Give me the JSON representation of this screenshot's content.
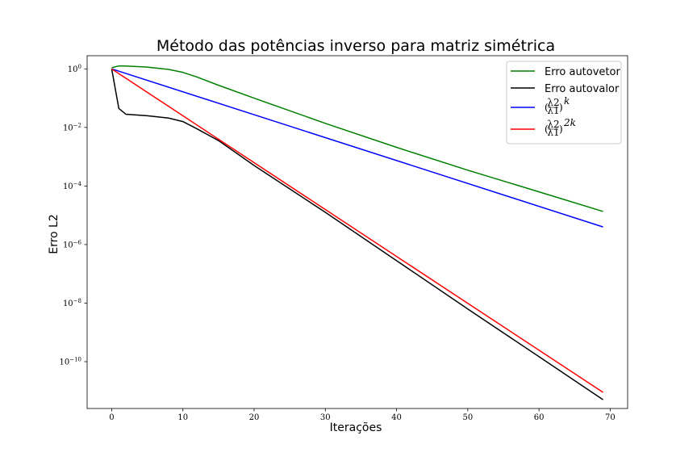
{
  "chart_data": {
    "type": "line",
    "title": "Método das potências inverso para matriz simétrica",
    "xlabel": "Iterações",
    "ylabel": "Erro L2",
    "xlim": [
      -3.45,
      72.45
    ],
    "ylim_log10": [
      -11.6,
      0.45
    ],
    "yscale": "log",
    "grid": false,
    "legend_position": "top-right",
    "xticks": [
      0,
      10,
      20,
      30,
      40,
      50,
      60,
      70
    ],
    "yticks": [
      {
        "base": "10",
        "exp": "0",
        "log10": 0
      },
      {
        "base": "10",
        "exp": "−2",
        "log10": -2
      },
      {
        "base": "10",
        "exp": "−4",
        "log10": -4
      },
      {
        "base": "10",
        "exp": "−6",
        "log10": -6
      },
      {
        "base": "10",
        "exp": "−8",
        "log10": -8
      },
      {
        "base": "10",
        "exp": "−10",
        "log10": -10
      }
    ],
    "series": [
      {
        "name": "Erro autovetor",
        "color": "#008000",
        "points": [
          [
            0,
            0.04
          ],
          [
            1,
            0.1
          ],
          [
            2,
            0.1
          ],
          [
            5,
            0.06
          ],
          [
            8,
            -0.02
          ],
          [
            10,
            -0.12
          ],
          [
            12,
            -0.28
          ],
          [
            15,
            -0.56
          ],
          [
            20,
            -1.0
          ],
          [
            30,
            -1.86
          ],
          [
            40,
            -2.68
          ],
          [
            50,
            -3.46
          ],
          [
            60,
            -4.2
          ],
          [
            69,
            -4.87
          ]
        ]
      },
      {
        "name": "Erro autovalor",
        "color": "#000000",
        "points": [
          [
            0,
            0.0
          ],
          [
            1,
            -1.35
          ],
          [
            2,
            -1.55
          ],
          [
            5,
            -1.6
          ],
          [
            8,
            -1.68
          ],
          [
            10,
            -1.8
          ],
          [
            12,
            -2.05
          ],
          [
            15,
            -2.45
          ],
          [
            20,
            -3.3
          ],
          [
            30,
            -4.9
          ],
          [
            40,
            -6.55
          ],
          [
            50,
            -8.2
          ],
          [
            60,
            -9.83
          ],
          [
            69,
            -11.3
          ]
        ]
      },
      {
        "name": "(λ2/λ1)^k",
        "color": "#0000ff",
        "points": [
          [
            0,
            0.0
          ],
          [
            69,
            -5.4
          ]
        ]
      },
      {
        "name": "(λ2/λ1)^2k",
        "color": "#ff0000",
        "points": [
          [
            0,
            0.0
          ],
          [
            69,
            -11.05
          ]
        ]
      }
    ]
  },
  "legend": {
    "items": [
      {
        "text": "Erro autovetor",
        "color": "#008000"
      },
      {
        "text": "Erro autovalor",
        "color": "#000000"
      },
      {
        "lhs": "(",
        "num": "λ2",
        "den": "λ1",
        "rhs": ")",
        "sup": "k",
        "color": "#0000ff"
      },
      {
        "lhs": "(",
        "num": "λ2",
        "den": "λ1",
        "rhs": ")",
        "sup": "2k",
        "color": "#ff0000"
      }
    ]
  }
}
